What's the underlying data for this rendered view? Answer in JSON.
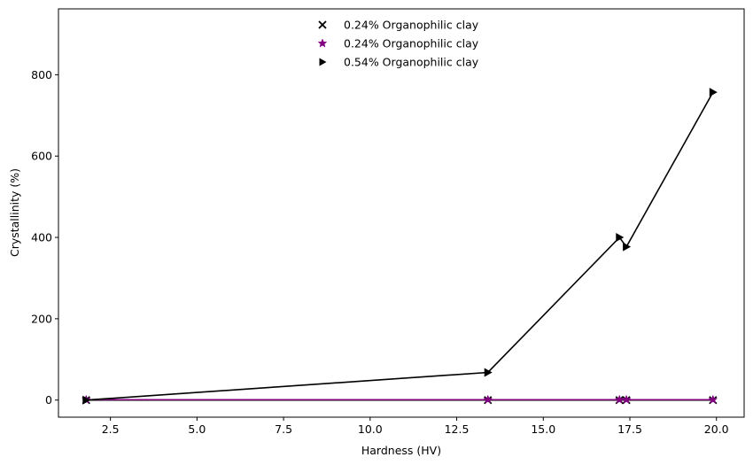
{
  "chart_data": {
    "type": "line",
    "title": "",
    "xlabel": "Hardness (HV)",
    "ylabel": "Crystallinity (%)",
    "xlim": [
      1.0,
      20.8
    ],
    "ylim": [
      -42,
      962
    ],
    "xticks": [
      2.5,
      5.0,
      7.5,
      10.0,
      12.5,
      15.0,
      17.5,
      20.0
    ],
    "xtick_labels": [
      "2.5",
      "5.0",
      "7.5",
      "10.0",
      "12.5",
      "15.0",
      "17.5",
      "20.0"
    ],
    "yticks": [
      0,
      200,
      400,
      600,
      800
    ],
    "ytick_labels": [
      "0",
      "200",
      "400",
      "600",
      "800"
    ],
    "grid": false,
    "legend_position": "upper center",
    "series": [
      {
        "name": "0.24% Organophilic clay",
        "marker": "x",
        "color": "#000000",
        "line_color": "#000000",
        "x": [
          1.8,
          13.4,
          17.2,
          17.4,
          19.9
        ],
        "y": [
          0,
          0,
          0,
          0,
          0
        ]
      },
      {
        "name": "0.24% Organophilic clay",
        "marker": "star",
        "color": "#800080",
        "line_color": "#800080",
        "x": [
          1.8,
          13.4,
          17.2,
          17.4,
          19.9
        ],
        "y": [
          1,
          1,
          1,
          1,
          1
        ]
      },
      {
        "name": "0.54% Organophilic clay",
        "marker": "triangle-right",
        "color": "#000000",
        "line_color": "#000000",
        "x": [
          1.8,
          13.4,
          17.2,
          17.4,
          19.9
        ],
        "y": [
          0,
          68,
          400,
          377,
          757
        ]
      }
    ]
  }
}
